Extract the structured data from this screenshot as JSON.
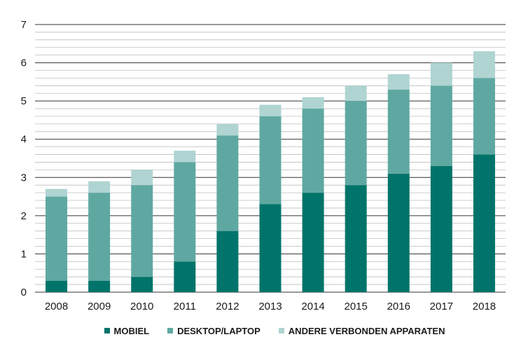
{
  "chart_data": {
    "type": "bar",
    "stacked": true,
    "categories": [
      "2008",
      "2009",
      "2010",
      "2011",
      "2012",
      "2013",
      "2014",
      "2015",
      "2016",
      "2017",
      "2018"
    ],
    "series": [
      {
        "name": "MOBIEL",
        "color": "#00746a",
        "values": [
          0.3,
          0.3,
          0.4,
          0.8,
          1.6,
          2.3,
          2.6,
          2.8,
          3.1,
          3.3,
          3.6
        ]
      },
      {
        "name": "DESKTOP/LAPTOP",
        "color": "#5fa8a2",
        "values": [
          2.2,
          2.3,
          2.4,
          2.6,
          2.5,
          2.3,
          2.2,
          2.2,
          2.2,
          2.1,
          2.0
        ]
      },
      {
        "name": "ANDERE VERBONDEN APPARATEN",
        "color": "#afd4d2",
        "values": [
          0.2,
          0.3,
          0.4,
          0.3,
          0.3,
          0.3,
          0.3,
          0.4,
          0.4,
          0.6,
          0.7
        ]
      }
    ],
    "yticks": [
      0,
      1,
      2,
      3,
      4,
      5,
      6,
      7
    ],
    "ylim": [
      0,
      7
    ],
    "minor_grid_step": 0.2,
    "grid": true,
    "legend_position": "bottom"
  }
}
